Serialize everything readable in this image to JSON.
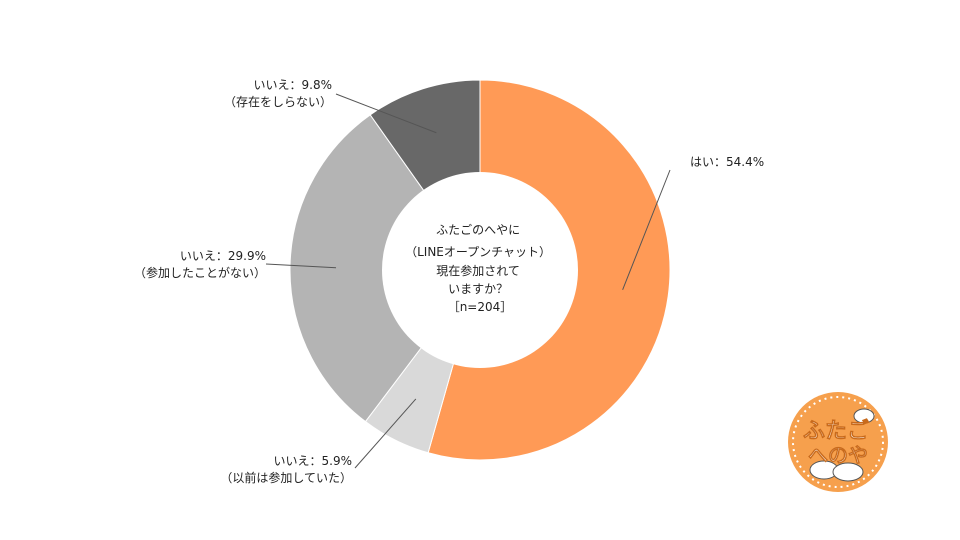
{
  "chart_data": {
    "type": "pie",
    "title_lines": [
      "ふたごのへやに",
      "（LINEオープンチャット）",
      "現在参加されて",
      "いますか？",
      "［n=204］"
    ],
    "slices": [
      {
        "name": "はい",
        "value": 54.4,
        "label": "はい：54.4%",
        "sublabel": "",
        "color": "#ff9a56"
      },
      {
        "name": "いいえ（以前は参加していた）",
        "value": 5.9,
        "label": "いいえ：5.9%",
        "sublabel": "（以前は参加していた）",
        "color": "#d9d9d9"
      },
      {
        "name": "いいえ（参加したことがない）",
        "value": 29.9,
        "label": "いいえ：29.9%",
        "sublabel": "（参加したことがない）",
        "color": "#b4b4b4"
      },
      {
        "name": "いいえ（存在をしらない）",
        "value": 9.8,
        "label": "いいえ：9.8%",
        "sublabel": "（存在をしらない）",
        "color": "#686868"
      }
    ]
  },
  "logo": {
    "line1": "ふたご",
    "line2": "へのや",
    "colors": {
      "ring": "#f6a04d",
      "text": "#ffffff"
    }
  }
}
